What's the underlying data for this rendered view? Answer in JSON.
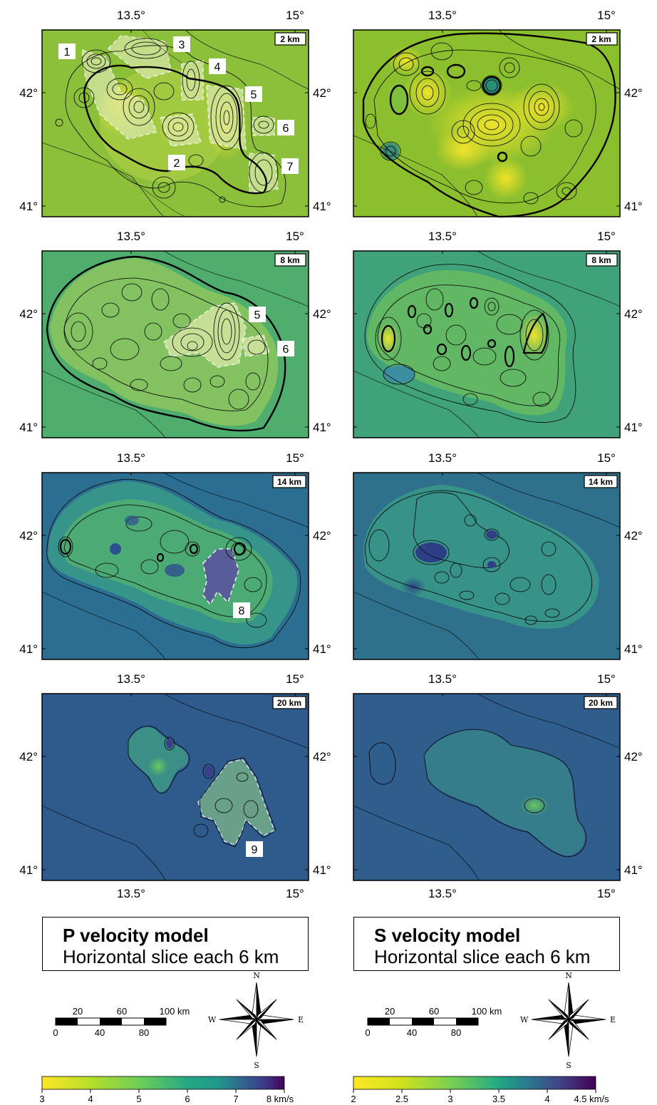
{
  "figure": {
    "colors": {
      "p_2km": "#8cbf3a",
      "p_8km": "#4fae6e",
      "p_14km": "#2c6e91",
      "p_20km": "#2e5b8c",
      "s_2km": "#8cbf2e",
      "s_8km": "#3fa27b",
      "s_14km": "#2f718c",
      "s_20km": "#2f5d8c",
      "highlight": "#d9e7a8",
      "yellow_core": "#f2e02a"
    },
    "axes": {
      "lon_labels": [
        "13.5°",
        "15°"
      ],
      "lat_labels": [
        "42°",
        "41°"
      ]
    },
    "panels": [
      {
        "id": "p2",
        "model": "P",
        "depth": "2 km",
        "anomalies": [
          "1",
          "2",
          "3",
          "4",
          "5",
          "6",
          "7"
        ]
      },
      {
        "id": "s2",
        "model": "S",
        "depth": "2 km",
        "anomalies": []
      },
      {
        "id": "p8",
        "model": "P",
        "depth": "8 km",
        "anomalies": [
          "5",
          "6"
        ]
      },
      {
        "id": "s8",
        "model": "S",
        "depth": "8 km",
        "anomalies": []
      },
      {
        "id": "p14",
        "model": "P",
        "depth": "14 km",
        "anomalies": [
          "8"
        ]
      },
      {
        "id": "s14",
        "model": "S",
        "depth": "14 km",
        "anomalies": []
      },
      {
        "id": "p20",
        "model": "P",
        "depth": "20 km",
        "anomalies": [
          "9"
        ]
      },
      {
        "id": "s20",
        "model": "S",
        "depth": "20 km",
        "anomalies": []
      }
    ],
    "titles": {
      "p": {
        "line1": "P velocity model",
        "line2": "Horizontal slice each 6 km"
      },
      "s": {
        "line1": "S velocity model",
        "line2": "Horizontal slice each 6 km"
      }
    },
    "scalebar": {
      "top_labels": [
        "20",
        "60",
        "100 km"
      ],
      "bottom_labels": [
        "0",
        "40",
        "80"
      ]
    },
    "compass": {
      "n": "N",
      "s": "S",
      "e": "E",
      "w": "W"
    },
    "colorbar_p": {
      "ticks": [
        "3",
        "4",
        "5",
        "6",
        "7",
        "8 km/s"
      ],
      "min": 3,
      "max": 8
    },
    "colorbar_s": {
      "ticks": [
        "2",
        "2.5",
        "3",
        "3.5",
        "4",
        "4.5 km/s"
      ],
      "min": 2,
      "max": 4.5
    }
  }
}
